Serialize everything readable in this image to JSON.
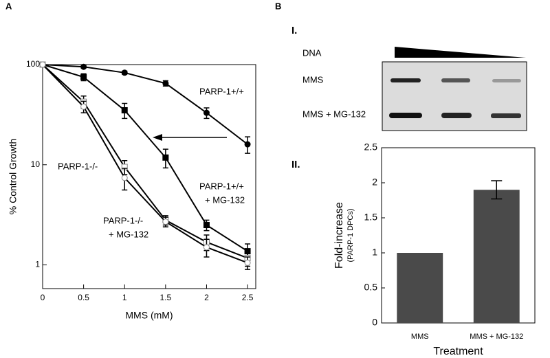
{
  "panel_labels": [
    "A",
    "B"
  ],
  "gel": {
    "section_label": "I.",
    "dna_label": "DNA",
    "lane_labels": [
      "MMS",
      "MMS + MG-132"
    ]
  },
  "chart_section_label": "II.",
  "chart_data": [
    {
      "type": "line",
      "log_y": true,
      "x_label": "MMS (mM)",
      "y_label": "% Control Growth",
      "x": [
        0,
        0.5,
        1,
        1.5,
        2,
        2.5
      ],
      "xlim": [
        0,
        2.6
      ],
      "xticks": [
        0,
        0.5,
        1,
        1.5,
        2,
        2.5
      ],
      "ylim": [
        0.58,
        100
      ],
      "yticks": [
        1,
        10,
        100
      ],
      "series": [
        {
          "name": "PARP-1+/+",
          "marker": "circle",
          "color": "#000000",
          "values": [
            100,
            95,
            83,
            65,
            33,
            16
          ],
          "errors": [
            0,
            3,
            3,
            4,
            4,
            3
          ]
        },
        {
          "name": "PARP-1+/+",
          "name_line2": "+ MG-132",
          "marker": "square",
          "color": "#000000",
          "values": [
            100,
            75,
            35,
            11.8,
            2.5,
            1.37
          ],
          "errors": [
            0,
            6,
            6,
            2.5,
            0.3,
            0.25
          ]
        },
        {
          "name": "PARP-1-/-",
          "marker": "square-open",
          "color": "#000000",
          "values": [
            100,
            42.5,
            9.5,
            2.8,
            1.69,
            1.17
          ],
          "errors": [
            0,
            6,
            1.5,
            0.3,
            0.3,
            0.2
          ]
        },
        {
          "name": "PARP-1-/-",
          "name_line2": "+ MG-132",
          "marker": "circle-open",
          "color": "#000000",
          "values": [
            100,
            38,
            7.4,
            2.7,
            1.5,
            1.05
          ],
          "errors": [
            0,
            5,
            1.8,
            0.3,
            0.3,
            0.15
          ]
        }
      ]
    },
    {
      "type": "bar",
      "x_label": "Treatment",
      "y_label": "Fold-increase",
      "y_sublabel": "(PARP-1 DPCs)",
      "categories": [
        "MMS",
        "MMS + MG-132"
      ],
      "values": [
        1,
        1.9
      ],
      "errors": [
        0,
        0.13
      ],
      "color": "#4a4a4a",
      "ylim": [
        0,
        2.5
      ],
      "yticks": [
        0,
        0.5,
        1,
        1.5,
        2,
        2.5
      ]
    }
  ]
}
